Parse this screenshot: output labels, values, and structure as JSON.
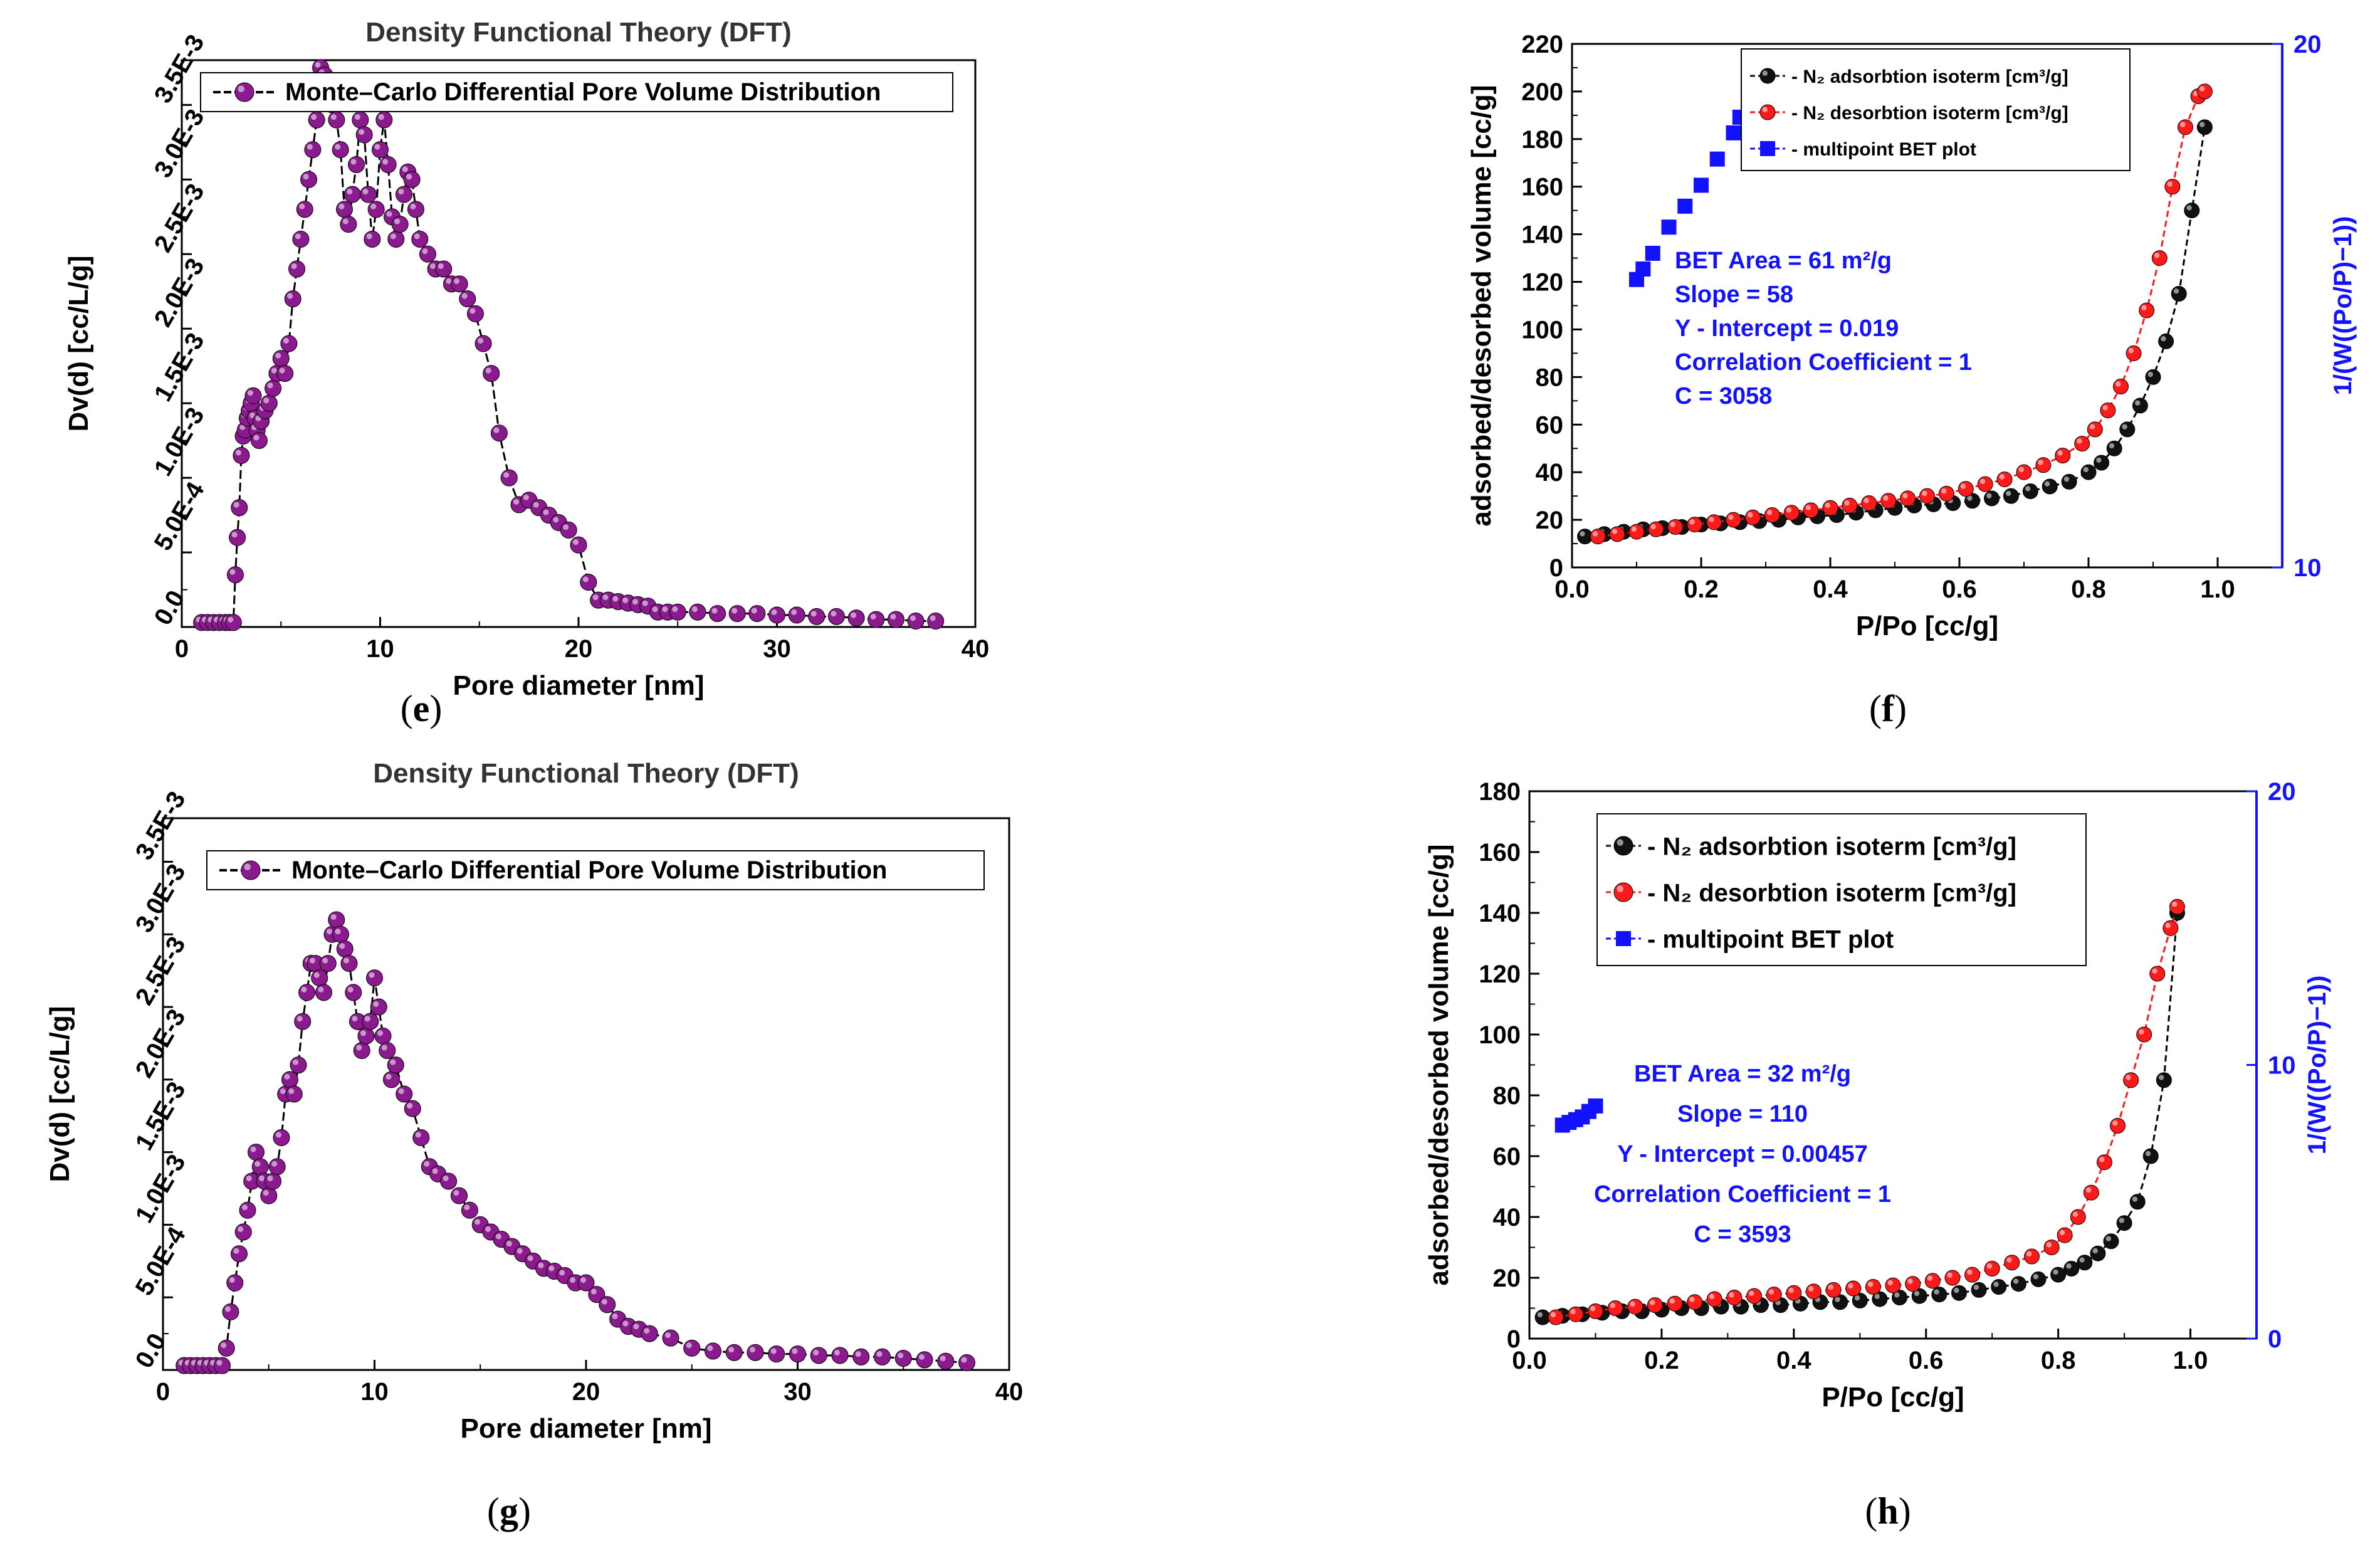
{
  "colors": {
    "purple": "#8b1a8f",
    "black_marker": "#111111",
    "red_marker": "#ff1a1a",
    "blue": "#1212ff"
  },
  "chart_data": [
    {
      "panel": "e",
      "type": "scatter",
      "title": "Density Functional Theory (DFT)",
      "xlabel": "Pore diameter [nm]",
      "ylabel": "Dv(d) [cc/L/g]",
      "xlim": [
        0,
        40
      ],
      "ylim": [
        0,
        0.0038
      ],
      "xticks": [
        0,
        10,
        20,
        30,
        40
      ],
      "xtick_labels": [
        "0",
        "10",
        "20",
        "30",
        "40"
      ],
      "yticks": [
        0,
        0.0005,
        0.001,
        0.0015,
        0.002,
        0.0025,
        0.003,
        0.0035
      ],
      "ytick_labels": [
        "0.0",
        "5.0E-4",
        "1.0E-3",
        "1.5E-3",
        "2.0E-3",
        "2.5E-3",
        "3.0E-3",
        "3.5E-3"
      ],
      "legend": {
        "position": "top",
        "entries": [
          "Monte–Carlo Differential Pore Volume Distribution"
        ]
      },
      "series": [
        {
          "name": "Monte–Carlo Differential Pore Volume Distribution",
          "x": [
            1,
            1.3,
            1.6,
            1.9,
            2.2,
            2.4,
            2.6,
            2.7,
            2.8,
            2.9,
            3.0,
            3.1,
            3.2,
            3.3,
            3.4,
            3.5,
            3.6,
            3.7,
            3.8,
            3.9,
            4.0,
            4.2,
            4.4,
            4.6,
            4.8,
            5.0,
            5.2,
            5.4,
            5.6,
            5.8,
            6.0,
            6.2,
            6.4,
            6.6,
            6.8,
            7.0,
            7.2,
            7.4,
            7.6,
            7.8,
            8.0,
            8.2,
            8.4,
            8.6,
            8.8,
            9.0,
            9.2,
            9.4,
            9.6,
            9.8,
            10.0,
            10.2,
            10.4,
            10.6,
            10.8,
            11.0,
            11.2,
            11.4,
            11.6,
            11.8,
            12.0,
            12.4,
            12.8,
            13.2,
            13.6,
            14.0,
            14.4,
            14.8,
            15.2,
            15.6,
            16.0,
            16.5,
            17.0,
            17.5,
            18.0,
            18.5,
            19.0,
            19.5,
            20.0,
            20.5,
            21.0,
            21.5,
            22.0,
            22.5,
            23.0,
            23.5,
            24.0,
            24.5,
            25.0,
            26.0,
            27.0,
            28.0,
            29.0,
            30.0,
            31.0,
            32.0,
            33.0,
            34.0,
            35.0,
            36.0,
            37.0,
            38.0
          ],
          "y": [
            3e-05,
            3e-05,
            3e-05,
            3e-05,
            3e-05,
            3e-05,
            3e-05,
            0.00035,
            0.0006,
            0.0008,
            0.00115,
            0.00128,
            0.00132,
            0.0014,
            0.00145,
            0.0015,
            0.00155,
            0.0014,
            0.00132,
            0.00125,
            0.00138,
            0.00145,
            0.0015,
            0.0016,
            0.0017,
            0.0018,
            0.0017,
            0.0019,
            0.0022,
            0.0024,
            0.0026,
            0.0028,
            0.003,
            0.0032,
            0.0034,
            0.00375,
            0.0037,
            0.0036,
            0.0035,
            0.0034,
            0.0032,
            0.0028,
            0.0027,
            0.0029,
            0.0031,
            0.0034,
            0.0033,
            0.0029,
            0.0026,
            0.0028,
            0.0032,
            0.0034,
            0.0031,
            0.00275,
            0.0026,
            0.0027,
            0.0029,
            0.00305,
            0.003,
            0.0028,
            0.0026,
            0.0025,
            0.0024,
            0.0024,
            0.0023,
            0.0023,
            0.0022,
            0.0021,
            0.0019,
            0.0017,
            0.0013,
            0.001,
            0.00082,
            0.00085,
            0.0008,
            0.00075,
            0.0007,
            0.00065,
            0.00055,
            0.0003,
            0.00018,
            0.00018,
            0.00017,
            0.00016,
            0.00015,
            0.00014,
            0.0001,
            0.0001,
            0.0001,
            0.0001,
            9e-05,
            9e-05,
            9e-05,
            8e-05,
            8e-05,
            7e-05,
            7e-05,
            6e-05,
            5e-05,
            5e-05,
            4e-05,
            4e-05
          ]
        }
      ]
    },
    {
      "panel": "f",
      "type": "scatter",
      "title": "",
      "xlabel": "P/Po [cc/g]",
      "ylabel": "adsorbed/desorbed volume [cc/g]",
      "ylabel_right": "1/(W((Po/P)−1))",
      "xlim": [
        0,
        1.1
      ],
      "ylim": [
        0,
        220
      ],
      "ylim_right": [
        10,
        20
      ],
      "xticks": [
        0,
        0.2,
        0.4,
        0.6,
        0.8,
        1.0
      ],
      "xtick_labels": [
        "0.0",
        "0.2",
        "0.4",
        "0.6",
        "0.8",
        "1.0"
      ],
      "yticks": [
        0,
        20,
        40,
        60,
        80,
        100,
        120,
        140,
        160,
        180,
        200,
        220
      ],
      "ytick_labels": [
        "0",
        "20",
        "40",
        "60",
        "80",
        "100",
        "120",
        "140",
        "160",
        "180",
        "200",
        "220"
      ],
      "yticks_right": [
        10,
        20
      ],
      "ytick_labels_right": [
        "10",
        "20"
      ],
      "legend": {
        "position": "top-right",
        "entries": [
          "- N₂ adsorbtion isoterm [cm³/g]",
          "- N₂ desorbtion isoterm [cm³/g]",
          "- multipoint BET plot"
        ]
      },
      "annotation": [
        "BET Area =  61 m²/g",
        "Slope =  58",
        "Y - Intercept =  0.019",
        "Correlation Coefficient =  1",
        "C =  3058"
      ],
      "series": [
        {
          "name": "N2 adsorbtion isoterm [cm3/g]",
          "x": [
            0.02,
            0.05,
            0.08,
            0.11,
            0.14,
            0.17,
            0.2,
            0.23,
            0.26,
            0.29,
            0.32,
            0.35,
            0.38,
            0.41,
            0.44,
            0.47,
            0.5,
            0.53,
            0.56,
            0.59,
            0.62,
            0.65,
            0.68,
            0.71,
            0.74,
            0.77,
            0.8,
            0.82,
            0.84,
            0.86,
            0.88,
            0.9,
            0.92,
            0.94,
            0.96,
            0.98
          ],
          "y": [
            13,
            14,
            15,
            16,
            16.5,
            17,
            18,
            18.5,
            19,
            19.5,
            20,
            21,
            21.5,
            22,
            23,
            24,
            25,
            26,
            26.5,
            27,
            28,
            29,
            30,
            32,
            34,
            36,
            40,
            44,
            50,
            58,
            68,
            80,
            95,
            115,
            150,
            185
          ]
        },
        {
          "name": "N2 desorbtion isoterm [cm3/g]",
          "x": [
            0.04,
            0.07,
            0.1,
            0.13,
            0.16,
            0.19,
            0.22,
            0.25,
            0.28,
            0.31,
            0.34,
            0.37,
            0.4,
            0.43,
            0.46,
            0.49,
            0.52,
            0.55,
            0.58,
            0.61,
            0.64,
            0.67,
            0.7,
            0.73,
            0.76,
            0.79,
            0.81,
            0.83,
            0.85,
            0.87,
            0.89,
            0.91,
            0.93,
            0.95,
            0.97,
            0.98
          ],
          "y": [
            13,
            14,
            15,
            16,
            17,
            18,
            19,
            20,
            21,
            22,
            23,
            24,
            25,
            26,
            27,
            28,
            29,
            30,
            31,
            33,
            35,
            37,
            40,
            43,
            47,
            52,
            58,
            66,
            76,
            90,
            108,
            130,
            160,
            185,
            198,
            200
          ]
        },
        {
          "name": "multipoint BET plot",
          "axis": "right",
          "x": [
            0.1,
            0.11,
            0.125,
            0.15,
            0.175,
            0.2,
            0.225,
            0.25,
            0.26
          ],
          "y": [
            15.5,
            15.7,
            16.0,
            16.5,
            16.9,
            17.3,
            17.8,
            18.3,
            18.6
          ]
        }
      ]
    },
    {
      "panel": "g",
      "type": "scatter",
      "title": "Density Functional Theory (DFT)",
      "xlabel": "Pore diameter [nm]",
      "ylabel": "Dv(d) [cc/L/g]",
      "xlim": [
        0,
        40
      ],
      "ylim": [
        0,
        0.0038
      ],
      "xticks": [
        0,
        10,
        20,
        30,
        40
      ],
      "xtick_labels": [
        "0",
        "10",
        "20",
        "30",
        "40"
      ],
      "yticks": [
        0,
        0.0005,
        0.001,
        0.0015,
        0.002,
        0.0025,
        0.003,
        0.0035
      ],
      "ytick_labels": [
        "0.0",
        "5.0E-4",
        "1.0E-3",
        "1.5E-3",
        "2.0E-3",
        "2.5E-3",
        "3.0E-3",
        "3.5E-3"
      ],
      "legend": {
        "position": "top",
        "entries": [
          "Monte–Carlo Differential Pore Volume Distribution"
        ]
      },
      "series": [
        {
          "name": "Monte–Carlo Differential Pore Volume Distribution",
          "x": [
            1,
            1.3,
            1.6,
            1.9,
            2.2,
            2.5,
            2.8,
            3.0,
            3.2,
            3.4,
            3.6,
            3.8,
            4.0,
            4.2,
            4.4,
            4.6,
            4.8,
            5.0,
            5.2,
            5.4,
            5.6,
            5.8,
            6.0,
            6.2,
            6.4,
            6.6,
            6.8,
            7.0,
            7.2,
            7.4,
            7.6,
            7.8,
            8.0,
            8.2,
            8.4,
            8.6,
            8.8,
            9.0,
            9.2,
            9.4,
            9.6,
            9.8,
            10.0,
            10.2,
            10.4,
            10.6,
            10.8,
            11.0,
            11.4,
            11.8,
            12.2,
            12.6,
            13.0,
            13.5,
            14.0,
            14.5,
            15.0,
            15.5,
            16.0,
            16.5,
            17.0,
            17.5,
            18.0,
            18.5,
            19.0,
            19.5,
            20.0,
            20.5,
            21.0,
            21.5,
            22.0,
            22.5,
            23.0,
            24.0,
            25.0,
            26.0,
            27.0,
            28.0,
            29.0,
            30.0,
            31.0,
            32.0,
            33.0,
            34.0,
            35.0,
            36.0,
            37.0,
            38.0
          ],
          "y": [
            3e-05,
            3e-05,
            3e-05,
            3e-05,
            3e-05,
            3e-05,
            3e-05,
            0.00015,
            0.0004,
            0.0006,
            0.0008,
            0.00095,
            0.0011,
            0.0013,
            0.0015,
            0.0014,
            0.0013,
            0.0012,
            0.0013,
            0.0014,
            0.0016,
            0.0019,
            0.002,
            0.0019,
            0.0021,
            0.0024,
            0.0026,
            0.0028,
            0.0028,
            0.0027,
            0.0026,
            0.0028,
            0.003,
            0.0031,
            0.003,
            0.0029,
            0.0028,
            0.0026,
            0.0024,
            0.0022,
            0.0023,
            0.0024,
            0.0027,
            0.0025,
            0.0023,
            0.0022,
            0.002,
            0.0021,
            0.0019,
            0.0018,
            0.0016,
            0.0014,
            0.00135,
            0.0013,
            0.0012,
            0.0011,
            0.001,
            0.00095,
            0.0009,
            0.00085,
            0.0008,
            0.00075,
            0.0007,
            0.00068,
            0.00065,
            0.0006,
            0.0006,
            0.00052,
            0.00045,
            0.00035,
            0.0003,
            0.00028,
            0.00025,
            0.00022,
            0.00015,
            0.00013,
            0.00012,
            0.00012,
            0.00011,
            0.00011,
            0.0001,
            0.0001,
            9e-05,
            9e-05,
            8e-05,
            7e-05,
            6e-05,
            5e-05
          ]
        }
      ]
    },
    {
      "panel": "h",
      "type": "scatter",
      "title": "",
      "xlabel": "P/Po [cc/g]",
      "ylabel": "adsorbed/desorbed volume [cc/g]",
      "ylabel_right": "1/(W((Po/P)−1))",
      "xlim": [
        0,
        1.1
      ],
      "ylim": [
        0,
        180
      ],
      "ylim_right": [
        0,
        20
      ],
      "xticks": [
        0,
        0.2,
        0.4,
        0.6,
        0.8,
        1.0
      ],
      "xtick_labels": [
        "0.0",
        "0.2",
        "0.4",
        "0.6",
        "0.8",
        "1.0"
      ],
      "yticks": [
        0,
        20,
        40,
        60,
        80,
        100,
        120,
        140,
        160,
        180
      ],
      "ytick_labels": [
        "0",
        "20",
        "40",
        "60",
        "80",
        "100",
        "120",
        "140",
        "160",
        "180"
      ],
      "yticks_right": [
        0,
        10,
        20
      ],
      "ytick_labels_right": [
        "0",
        "10",
        "20"
      ],
      "legend": {
        "position": "top-left",
        "entries": [
          "- N₂ adsorbtion isoterm [cm³/g]",
          "- N₂ desorbtion isoterm [cm³/g]",
          "- multipoint BET plot"
        ]
      },
      "annotation": [
        "BET Area =  32 m²/g",
        "Slope =  110",
        "Y - Intercept =  0.00457",
        "Correlation Coefficient =  1",
        "C =  3593"
      ],
      "series": [
        {
          "name": "N2 adsorbtion isoterm [cm3/g]",
          "x": [
            0.02,
            0.05,
            0.08,
            0.11,
            0.14,
            0.17,
            0.2,
            0.23,
            0.26,
            0.29,
            0.32,
            0.35,
            0.38,
            0.41,
            0.44,
            0.47,
            0.5,
            0.53,
            0.56,
            0.59,
            0.62,
            0.65,
            0.68,
            0.71,
            0.74,
            0.77,
            0.8,
            0.82,
            0.84,
            0.86,
            0.88,
            0.9,
            0.92,
            0.94,
            0.96,
            0.98
          ],
          "y": [
            7,
            7.5,
            8,
            8.5,
            9,
            9,
            9.5,
            10,
            10,
            10.5,
            10.5,
            11,
            11,
            11.5,
            12,
            12,
            12.5,
            13,
            13.5,
            14,
            14.5,
            15,
            16,
            17,
            18,
            19.5,
            21,
            23,
            25,
            28,
            32,
            38,
            45,
            60,
            85,
            140
          ]
        },
        {
          "name": "N2 desorbtion isoterm [cm3/g]",
          "x": [
            0.04,
            0.07,
            0.1,
            0.13,
            0.16,
            0.19,
            0.22,
            0.25,
            0.28,
            0.31,
            0.34,
            0.37,
            0.4,
            0.43,
            0.46,
            0.49,
            0.52,
            0.55,
            0.58,
            0.61,
            0.64,
            0.67,
            0.7,
            0.73,
            0.76,
            0.79,
            0.81,
            0.83,
            0.85,
            0.87,
            0.89,
            0.91,
            0.93,
            0.95,
            0.97,
            0.98
          ],
          "y": [
            7,
            8,
            9,
            10,
            10.5,
            11,
            11.5,
            12,
            13,
            13.5,
            14,
            14.5,
            15,
            15.5,
            16,
            16.5,
            17,
            17.5,
            18,
            19,
            20,
            21,
            23,
            25,
            27,
            30,
            34,
            40,
            48,
            58,
            70,
            85,
            100,
            120,
            135,
            142
          ]
        },
        {
          "name": "multipoint BET plot",
          "axis": "right",
          "x": [
            0.05,
            0.06,
            0.07,
            0.08,
            0.09,
            0.1
          ],
          "y": [
            7.8,
            7.9,
            8.0,
            8.1,
            8.3,
            8.5
          ]
        }
      ]
    }
  ],
  "panel_labels": [
    {
      "open": "(",
      "letter": "e",
      "close": ")"
    },
    {
      "open": "(",
      "letter": "f",
      "close": ")"
    },
    {
      "open": "(",
      "letter": "g",
      "close": ")"
    },
    {
      "open": "(",
      "letter": "h",
      "close": ")"
    }
  ]
}
